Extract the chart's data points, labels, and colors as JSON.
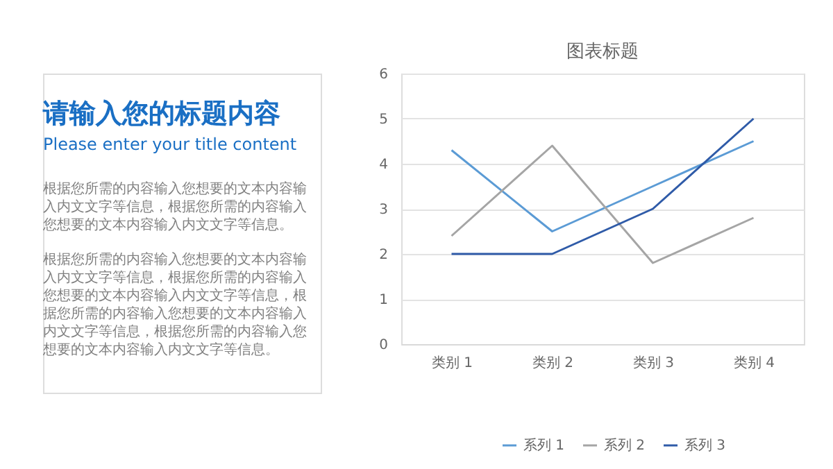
{
  "chart_data": {
    "type": "line",
    "title": "请输入您的标题内容",
    "subtitle": "Please enter your title content",
    "annotations": [
      "图表标题",
      "根据您所需的内容输入您想要的文本内容输入内文文字等信息，根据您所需的内容输入您想要的文本内容输入内文文字等信息。",
      "根据您所需的内容输入您想要的文本内容输入内文文字等信息，根据您所需的内容输入您想要的文本内容输入内文文字等信息，根据您所需的内容输入您想要的文本内容输入内文文字等信息，根据您所需的内容输入您想要的文本内容输入内文文字等信息。"
    ],
    "categories": [
      "类别 1",
      "类别 2",
      "类别 3",
      "类别 4"
    ],
    "series": [
      {
        "name": "系列 1",
        "color": "#5b9bd5",
        "values": [
          4.3,
          2.5,
          3.5,
          4.5
        ]
      },
      {
        "name": "系列 2",
        "color": "#a5a5a5",
        "values": [
          2.4,
          4.4,
          1.8,
          2.8
        ]
      },
      {
        "name": "系列 3",
        "color": "#2f5ba8",
        "values": [
          2,
          2,
          3,
          5
        ]
      }
    ],
    "ylim": [
      0,
      6
    ],
    "yticks": [
      0,
      1,
      2,
      3,
      4,
      5,
      6
    ],
    "grid": "y",
    "legend": "bottom",
    "marker": "none",
    "line_style": "solid"
  }
}
